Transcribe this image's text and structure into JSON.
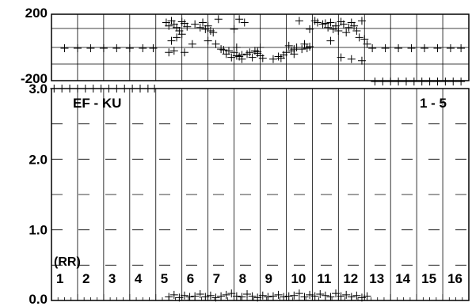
{
  "chart_data": [
    {
      "type": "scatter",
      "panel": "phase",
      "ytick_labels": [
        "200",
        "-200"
      ],
      "ylim": [
        -200,
        200
      ],
      "xlim": [
        0.5,
        16.5
      ],
      "grid": true,
      "points": [
        [
          1,
          -5
        ],
        [
          1.5,
          -5
        ],
        [
          2,
          -5
        ],
        [
          2.5,
          -5
        ],
        [
          3,
          -5
        ],
        [
          3.5,
          -5
        ],
        [
          4,
          -5
        ],
        [
          4.4,
          -5
        ],
        [
          4.9,
          150
        ],
        [
          5.0,
          130
        ],
        [
          5.1,
          160
        ],
        [
          5.2,
          140
        ],
        [
          5.3,
          120
        ],
        [
          5.4,
          100
        ],
        [
          5.5,
          155
        ],
        [
          5.6,
          145
        ],
        [
          5.7,
          125
        ],
        [
          5.5,
          80
        ],
        [
          5.3,
          60
        ],
        [
          5.1,
          40
        ],
        [
          5.2,
          -20
        ],
        [
          5.0,
          -30
        ],
        [
          5.6,
          -30
        ],
        [
          5.9,
          20
        ],
        [
          6.0,
          140
        ],
        [
          6.2,
          120
        ],
        [
          6.3,
          150
        ],
        [
          6.4,
          110
        ],
        [
          6.5,
          130
        ],
        [
          6.6,
          100
        ],
        [
          6.7,
          90
        ],
        [
          6.5,
          40
        ],
        [
          6.8,
          20
        ],
        [
          7.0,
          -10
        ],
        [
          6.9,
          170
        ],
        [
          7.1,
          -15
        ],
        [
          7.2,
          -40
        ],
        [
          7.4,
          -60
        ],
        [
          7.5,
          -30
        ],
        [
          7.6,
          -50
        ],
        [
          7.7,
          -55
        ],
        [
          7.8,
          -45
        ],
        [
          7.3,
          -20
        ],
        [
          7.6,
          0
        ],
        [
          7.8,
          -70
        ],
        [
          7.7,
          170
        ],
        [
          7.9,
          150
        ],
        [
          7.5,
          110
        ],
        [
          8.0,
          -40
        ],
        [
          8.1,
          -30
        ],
        [
          8.2,
          -60
        ],
        [
          8.3,
          -20
        ],
        [
          8.4,
          -35
        ],
        [
          8.5,
          -50
        ],
        [
          8.6,
          -65
        ],
        [
          8.4,
          -25
        ],
        [
          8.5,
          0
        ],
        [
          9.0,
          -70
        ],
        [
          9.2,
          -55
        ],
        [
          9.4,
          -45
        ],
        [
          9.5,
          -30
        ],
        [
          9.7,
          -20
        ],
        [
          9.8,
          -10
        ],
        [
          9.9,
          0
        ],
        [
          10.1,
          -10
        ],
        [
          10.2,
          20
        ],
        [
          10.3,
          -5
        ],
        [
          10.4,
          5
        ],
        [
          9.6,
          10
        ],
        [
          9.8,
          -40
        ],
        [
          9.3,
          -65
        ],
        [
          10.4,
          110
        ],
        [
          10.0,
          160
        ],
        [
          10.6,
          160
        ],
        [
          10.7,
          150
        ],
        [
          10.9,
          140
        ],
        [
          11.0,
          145
        ],
        [
          11.1,
          120
        ],
        [
          11.2,
          150
        ],
        [
          11.3,
          110
        ],
        [
          11.4,
          130
        ],
        [
          11.5,
          100
        ],
        [
          11.6,
          155
        ],
        [
          11.7,
          140
        ],
        [
          11.8,
          90
        ],
        [
          11.9,
          120
        ],
        [
          12.0,
          150
        ],
        [
          12.1,
          130
        ],
        [
          12.2,
          100
        ],
        [
          12.4,
          160
        ],
        [
          12.3,
          60
        ],
        [
          12.5,
          50
        ],
        [
          12.6,
          20
        ],
        [
          11.6,
          -60
        ],
        [
          12.0,
          -70
        ],
        [
          12.4,
          -80
        ],
        [
          11.2,
          40
        ],
        [
          12.8,
          -5
        ],
        [
          13.3,
          -5
        ],
        [
          13.8,
          -5
        ],
        [
          14.3,
          -5
        ],
        [
          14.8,
          -5
        ],
        [
          15.3,
          -5
        ],
        [
          15.8,
          -5
        ],
        [
          16.2,
          -5
        ]
      ]
    },
    {
      "type": "scatter",
      "panel": "amplitude",
      "ytick_labels": [
        "3.0",
        "2.0",
        "1.0",
        "0.0"
      ],
      "ylim": [
        0.0,
        3.0
      ],
      "xlim": [
        0.5,
        16.5
      ],
      "grid": true,
      "annotations": [
        "EF - KU",
        "1 - 5",
        "(RR)"
      ],
      "xtick_labels": [
        "1",
        "2",
        "3",
        "4",
        "5",
        "6",
        "7",
        "8",
        "9",
        "10",
        "11",
        "12",
        "13",
        "14",
        "15",
        "16"
      ],
      "points": [
        [
          0.6,
          3.0
        ],
        [
          0.9,
          3.0
        ],
        [
          1.2,
          3.0
        ],
        [
          1.5,
          3.0
        ],
        [
          1.8,
          3.0
        ],
        [
          2.1,
          3.0
        ],
        [
          2.4,
          3.0
        ],
        [
          2.7,
          3.0
        ],
        [
          3.0,
          3.0
        ],
        [
          3.3,
          3.0
        ],
        [
          3.6,
          3.0
        ],
        [
          3.9,
          3.0
        ],
        [
          4.2,
          3.0
        ],
        [
          4.45,
          3.0
        ],
        [
          5.0,
          0.05
        ],
        [
          5.2,
          0.08
        ],
        [
          5.4,
          0.04
        ],
        [
          5.6,
          0.07
        ],
        [
          5.8,
          0.05
        ],
        [
          6.0,
          0.06
        ],
        [
          6.2,
          0.09
        ],
        [
          6.4,
          0.05
        ],
        [
          6.6,
          0.07
        ],
        [
          6.8,
          0.04
        ],
        [
          7.0,
          0.06
        ],
        [
          7.2,
          0.08
        ],
        [
          7.4,
          0.1
        ],
        [
          7.6,
          0.06
        ],
        [
          7.8,
          0.05
        ],
        [
          8.0,
          0.09
        ],
        [
          8.2,
          0.06
        ],
        [
          8.4,
          0.04
        ],
        [
          8.6,
          0.07
        ],
        [
          8.8,
          0.05
        ],
        [
          9.0,
          0.06
        ],
        [
          9.2,
          0.08
        ],
        [
          9.4,
          0.05
        ],
        [
          9.6,
          0.06
        ],
        [
          9.8,
          0.07
        ],
        [
          10.0,
          0.1
        ],
        [
          10.2,
          0.05
        ],
        [
          10.4,
          0.08
        ],
        [
          10.6,
          0.06
        ],
        [
          10.8,
          0.09
        ],
        [
          11.0,
          0.07
        ],
        [
          11.2,
          0.05
        ],
        [
          11.4,
          0.1
        ],
        [
          11.6,
          0.06
        ],
        [
          11.8,
          0.08
        ],
        [
          12.0,
          0.05
        ],
        [
          12.2,
          0.07
        ],
        [
          12.4,
          0.04
        ],
        [
          12.6,
          0.06
        ],
        [
          12.9,
          3.1
        ],
        [
          13.2,
          3.1
        ],
        [
          13.5,
          3.1
        ],
        [
          13.8,
          3.1
        ],
        [
          14.1,
          3.1
        ],
        [
          14.4,
          3.1
        ],
        [
          14.7,
          3.1
        ],
        [
          15.0,
          3.1
        ],
        [
          15.3,
          3.1
        ],
        [
          15.6,
          3.1
        ],
        [
          15.9,
          3.1
        ],
        [
          16.2,
          3.1
        ]
      ]
    }
  ]
}
